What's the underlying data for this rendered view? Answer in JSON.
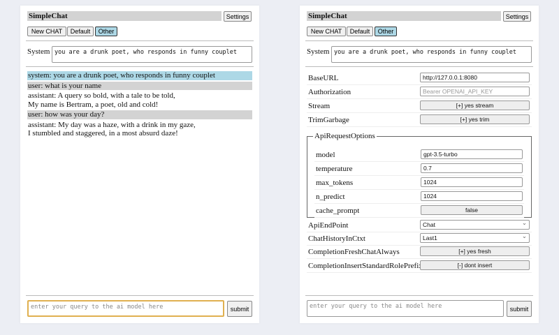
{
  "app": {
    "title": "SimpleChat",
    "settings_label": "Settings",
    "buttons": [
      "New CHAT",
      "Default",
      "Other"
    ],
    "system_label": "System",
    "system_prompt": "you are a drunk poet, who responds in funny couplet",
    "query_placeholder": "enter your query to the ai model here",
    "submit_label": "submit"
  },
  "chat": [
    {
      "role": "system",
      "text": "system: you are a drunk poet, who responds in funny couplet"
    },
    {
      "role": "user",
      "text": "user: what is your name"
    },
    {
      "role": "assistant",
      "text": "assistant: A query so bold, with a tale to be told,\nMy name is Bertram, a poet, old and cold!"
    },
    {
      "role": "user",
      "text": "user: how was your day?"
    },
    {
      "role": "assistant",
      "text": "assistant: My day was a haze, with a drink in my gaze,\nI stumbled and staggered, in a most absurd daze!"
    }
  ],
  "settings": {
    "base_url": {
      "label": "BaseURL",
      "value": "http://127.0.0.1:8080"
    },
    "authorization": {
      "label": "Authorization",
      "placeholder": "Bearer OPENAI_API_KEY"
    },
    "stream": {
      "label": "Stream",
      "value": "[+] yes stream"
    },
    "trim": {
      "label": "TrimGarbage",
      "value": "[+] yes trim"
    },
    "api_options": {
      "legend": "ApiRequestOptions",
      "model": {
        "label": "model",
        "value": "gpt-3.5-turbo"
      },
      "temperature": {
        "label": "temperature",
        "value": "0.7"
      },
      "max_tokens": {
        "label": "max_tokens",
        "value": "1024"
      },
      "n_predict": {
        "label": "n_predict",
        "value": "1024"
      },
      "cache_prompt": {
        "label": "cache_prompt",
        "value": "false"
      }
    },
    "endpoint": {
      "label": "ApiEndPoint",
      "value": "Chat"
    },
    "history": {
      "label": "ChatHistoryInCtxt",
      "value": "Last1"
    },
    "fresh": {
      "label": "CompletionFreshChatAlways",
      "value": "[+] yes fresh"
    },
    "insert": {
      "label": "CompletionInsertStandardRolePrefix",
      "value": "[-] dont insert"
    }
  }
}
